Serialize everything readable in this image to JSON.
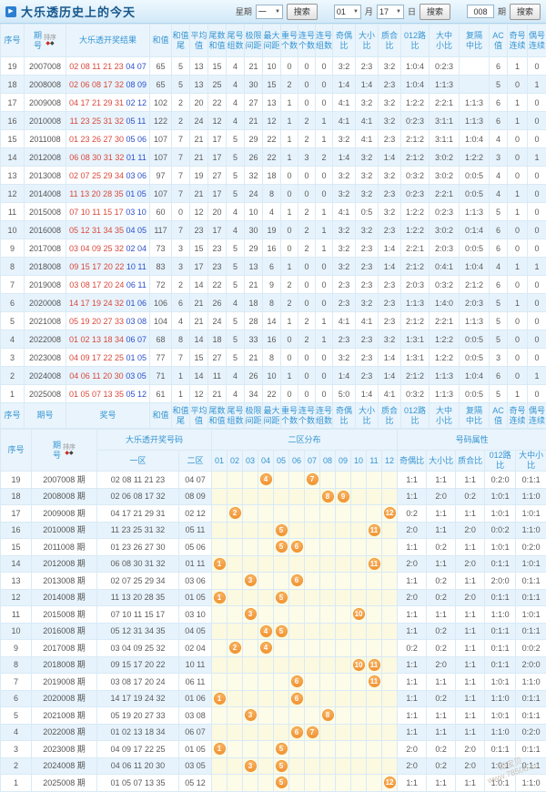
{
  "title_bar": {
    "title": "大乐透历史上的今天",
    "week_label": "星期",
    "week_value": "一",
    "search_label": "搜索",
    "month_value": "01",
    "month_label": "月",
    "day_value": "17",
    "day_label": "日",
    "issue_value": "008",
    "issue_label": "期"
  },
  "colors": {
    "accent_blue": "#3695d2",
    "front_number_red": "#d9483b",
    "back_number_blue": "#2b50cc",
    "stripe_blue": "#e7f3fc",
    "dist_yellow": "#fdfce9",
    "ball_orange": "#f29334"
  },
  "table1": {
    "sort_label": "排序",
    "columns": [
      {
        "lines": [
          "序号"
        ]
      },
      {
        "lines": [
          "期",
          "号"
        ],
        "sort": true
      },
      {
        "lines": [
          "大乐透开奖结果"
        ]
      },
      {
        "lines": [
          "和值"
        ]
      },
      {
        "lines": [
          "和值",
          "尾"
        ]
      },
      {
        "lines": [
          "平均",
          "值"
        ]
      },
      {
        "lines": [
          "尾数",
          "和值"
        ]
      },
      {
        "lines": [
          "尾号",
          "组数"
        ]
      },
      {
        "lines": [
          "极限",
          "间距"
        ]
      },
      {
        "lines": [
          "最大",
          "间距"
        ]
      },
      {
        "lines": [
          "重号",
          "个数"
        ]
      },
      {
        "lines": [
          "连号",
          "个数"
        ]
      },
      {
        "lines": [
          "连号",
          "组数"
        ]
      },
      {
        "lines": [
          "奇偶",
          "比"
        ]
      },
      {
        "lines": [
          "大小",
          "比"
        ]
      },
      {
        "lines": [
          "质合",
          "比"
        ]
      },
      {
        "lines": [
          "012路",
          "比"
        ]
      },
      {
        "lines": [
          "大中",
          "小比"
        ]
      },
      {
        "lines": [
          "复隔",
          "中比"
        ]
      },
      {
        "lines": [
          "AC值"
        ]
      },
      {
        "lines": [
          "奇号",
          "连续"
        ]
      },
      {
        "lines": [
          "偶号",
          "连续"
        ]
      }
    ],
    "footer_overrides": {
      "1": {
        "lines": [
          "期号"
        ]
      },
      "2": {
        "lines": [
          "奖号"
        ]
      }
    },
    "rows": [
      [
        19,
        "2007008",
        "02 08 11 21 23",
        "04 07",
        "65",
        "5",
        "13",
        "15",
        "4",
        "21",
        "10",
        "0",
        "0",
        "0",
        "3:2",
        "2:3",
        "3:2",
        "1:0:4",
        "0:2:3",
        "",
        "6",
        "1",
        "0"
      ],
      [
        18,
        "2008008",
        "02 06 08 17 32",
        "08 09",
        "65",
        "5",
        "13",
        "25",
        "4",
        "30",
        "15",
        "2",
        "0",
        "0",
        "1:4",
        "1:4",
        "2:3",
        "1:0:4",
        "1:1:3",
        "",
        "5",
        "0",
        "1"
      ],
      [
        17,
        "2009008",
        "04 17 21 29 31",
        "02 12",
        "102",
        "2",
        "20",
        "22",
        "4",
        "27",
        "13",
        "1",
        "0",
        "0",
        "4:1",
        "3:2",
        "3:2",
        "1:2:2",
        "2:2:1",
        "1:1:3",
        "6",
        "1",
        "0"
      ],
      [
        16,
        "2010008",
        "11 23 25 31 32",
        "05 11",
        "122",
        "2",
        "24",
        "12",
        "4",
        "21",
        "12",
        "1",
        "2",
        "1",
        "4:1",
        "4:1",
        "3:2",
        "0:2:3",
        "3:1:1",
        "1:1:3",
        "6",
        "1",
        "0"
      ],
      [
        15,
        "2011008",
        "01 23 26 27 30",
        "05 06",
        "107",
        "7",
        "21",
        "17",
        "5",
        "29",
        "22",
        "1",
        "2",
        "1",
        "3:2",
        "4:1",
        "2:3",
        "2:1:2",
        "3:1:1",
        "1:0:4",
        "4",
        "0",
        "0"
      ],
      [
        14,
        "2012008",
        "06 08 30 31 32",
        "01 11",
        "107",
        "7",
        "21",
        "17",
        "5",
        "26",
        "22",
        "1",
        "3",
        "2",
        "1:4",
        "3:2",
        "1:4",
        "2:1:2",
        "3:0:2",
        "1:2:2",
        "3",
        "0",
        "1"
      ],
      [
        13,
        "2013008",
        "02 07 25 29 34",
        "03 06",
        "97",
        "7",
        "19",
        "27",
        "5",
        "32",
        "18",
        "0",
        "0",
        "0",
        "3:2",
        "3:2",
        "3:2",
        "0:3:2",
        "3:0:2",
        "0:0:5",
        "4",
        "0",
        "0"
      ],
      [
        12,
        "2014008",
        "11 13 20 28 35",
        "01 05",
        "107",
        "7",
        "21",
        "17",
        "5",
        "24",
        "8",
        "0",
        "0",
        "0",
        "3:2",
        "3:2",
        "2:3",
        "0:2:3",
        "2:2:1",
        "0:0:5",
        "4",
        "1",
        "0"
      ],
      [
        11,
        "2015008",
        "07 10 11 15 17",
        "03 10",
        "60",
        "0",
        "12",
        "20",
        "4",
        "10",
        "4",
        "1",
        "2",
        "1",
        "4:1",
        "0:5",
        "3:2",
        "1:2:2",
        "0:2:3",
        "1:1:3",
        "5",
        "1",
        "0"
      ],
      [
        10,
        "2016008",
        "05 12 31 34 35",
        "04 05",
        "117",
        "7",
        "23",
        "17",
        "4",
        "30",
        "19",
        "0",
        "2",
        "1",
        "3:2",
        "3:2",
        "2:3",
        "1:2:2",
        "3:0:2",
        "0:1:4",
        "6",
        "0",
        "0"
      ],
      [
        9,
        "2017008",
        "03 04 09 25 32",
        "02 04",
        "73",
        "3",
        "15",
        "23",
        "5",
        "29",
        "16",
        "0",
        "2",
        "1",
        "3:2",
        "2:3",
        "1:4",
        "2:2:1",
        "2:0:3",
        "0:0:5",
        "6",
        "0",
        "0"
      ],
      [
        8,
        "2018008",
        "09 15 17 20 22",
        "10 11",
        "83",
        "3",
        "17",
        "23",
        "5",
        "13",
        "6",
        "1",
        "0",
        "0",
        "3:2",
        "2:3",
        "1:4",
        "2:1:2",
        "0:4:1",
        "1:0:4",
        "4",
        "1",
        "1"
      ],
      [
        7,
        "2019008",
        "03 08 17 20 24",
        "06 11",
        "72",
        "2",
        "14",
        "22",
        "5",
        "21",
        "9",
        "2",
        "0",
        "0",
        "2:3",
        "2:3",
        "2:3",
        "2:0:3",
        "0:3:2",
        "2:1:2",
        "6",
        "0",
        "0"
      ],
      [
        6,
        "2020008",
        "14 17 19 24 32",
        "01 06",
        "106",
        "6",
        "21",
        "26",
        "4",
        "18",
        "8",
        "2",
        "0",
        "0",
        "2:3",
        "3:2",
        "2:3",
        "1:1:3",
        "1:4:0",
        "2:0:3",
        "5",
        "1",
        "0"
      ],
      [
        5,
        "2021008",
        "05 19 20 27 33",
        "03 08",
        "104",
        "4",
        "21",
        "24",
        "5",
        "28",
        "14",
        "1",
        "2",
        "1",
        "4:1",
        "4:1",
        "2:3",
        "2:1:2",
        "2:2:1",
        "1:1:3",
        "5",
        "0",
        "0"
      ],
      [
        4,
        "2022008",
        "01 02 13 18 34",
        "06 07",
        "68",
        "8",
        "14",
        "18",
        "5",
        "33",
        "16",
        "0",
        "2",
        "1",
        "2:3",
        "2:3",
        "3:2",
        "1:3:1",
        "1:2:2",
        "0:0:5",
        "5",
        "0",
        "0"
      ],
      [
        3,
        "2023008",
        "04 09 17 22 25",
        "01 05",
        "77",
        "7",
        "15",
        "27",
        "5",
        "21",
        "8",
        "0",
        "0",
        "0",
        "3:2",
        "2:3",
        "1:4",
        "1:3:1",
        "1:2:2",
        "0:0:5",
        "3",
        "0",
        "0"
      ],
      [
        2,
        "2024008",
        "04 06 11 20 30",
        "03 05",
        "71",
        "1",
        "14",
        "11",
        "4",
        "26",
        "10",
        "1",
        "0",
        "0",
        "1:4",
        "2:3",
        "1:4",
        "2:1:2",
        "1:1:3",
        "1:0:4",
        "6",
        "0",
        "1"
      ],
      [
        1,
        "2025008",
        "01 05 07 13 35",
        "05 12",
        "61",
        "1",
        "12",
        "21",
        "4",
        "34",
        "22",
        "0",
        "0",
        "0",
        "5:0",
        "1:4",
        "4:1",
        "0:3:2",
        "1:1:3",
        "0:0:5",
        "5",
        "1",
        "0"
      ]
    ]
  },
  "table2": {
    "headers": {
      "seq": "序号",
      "issue_l1": "期",
      "issue_l2": "号",
      "sort_label": "排序",
      "numbers_group": "大乐透开奖号码",
      "zone1": "一区",
      "zone2": "二区",
      "dist_group": "二区分布",
      "attr_group": "号码属性",
      "ball_cols": [
        "01",
        "02",
        "03",
        "04",
        "05",
        "06",
        "07",
        "08",
        "09",
        "10",
        "11",
        "12"
      ],
      "attrs": [
        "奇偶比",
        "大小比",
        "质合比",
        "012路比",
        "大中小比"
      ]
    },
    "issue_suffix": "期",
    "rows": [
      [
        19,
        "2007008",
        "02 08 11 21 23",
        "04 07",
        [
          4,
          7
        ],
        "1:1",
        "1:1",
        "1:1",
        "0:2:0",
        "0:1:1"
      ],
      [
        18,
        "2008008",
        "02 06 08 17 32",
        "08 09",
        [
          8,
          9
        ],
        "1:1",
        "2:0",
        "0:2",
        "1:0:1",
        "1:1:0"
      ],
      [
        17,
        "2009008",
        "04 17 21 29 31",
        "02 12",
        [
          2,
          12
        ],
        "0:2",
        "1:1",
        "1:1",
        "1:0:1",
        "1:0:1"
      ],
      [
        16,
        "2010008",
        "11 23 25 31 32",
        "05 11",
        [
          5,
          11
        ],
        "2:0",
        "1:1",
        "2:0",
        "0:0:2",
        "1:1:0"
      ],
      [
        15,
        "2011008",
        "01 23 26 27 30",
        "05 06",
        [
          5,
          6
        ],
        "1:1",
        "0:2",
        "1:1",
        "1:0:1",
        "0:2:0"
      ],
      [
        14,
        "2012008",
        "06 08 30 31 32",
        "01 11",
        [
          1,
          11
        ],
        "2:0",
        "1:1",
        "2:0",
        "0:1:1",
        "1:0:1"
      ],
      [
        13,
        "2013008",
        "02 07 25 29 34",
        "03 06",
        [
          3,
          6
        ],
        "1:1",
        "0:2",
        "1:1",
        "2:0:0",
        "0:1:1"
      ],
      [
        12,
        "2014008",
        "11 13 20 28 35",
        "01 05",
        [
          1,
          5
        ],
        "2:0",
        "0:2",
        "2:0",
        "0:1:1",
        "0:1:1"
      ],
      [
        11,
        "2015008",
        "07 10 11 15 17",
        "03 10",
        [
          3,
          10
        ],
        "1:1",
        "1:1",
        "1:1",
        "1:1:0",
        "1:0:1"
      ],
      [
        10,
        "2016008",
        "05 12 31 34 35",
        "04 05",
        [
          4,
          5
        ],
        "1:1",
        "0:2",
        "1:1",
        "0:1:1",
        "0:1:1"
      ],
      [
        9,
        "2017008",
        "03 04 09 25 32",
        "02 04",
        [
          2,
          4
        ],
        "0:2",
        "0:2",
        "1:1",
        "0:1:1",
        "0:0:2"
      ],
      [
        8,
        "2018008",
        "09 15 17 20 22",
        "10 11",
        [
          10,
          11
        ],
        "1:1",
        "2:0",
        "1:1",
        "0:1:1",
        "2:0:0"
      ],
      [
        7,
        "2019008",
        "03 08 17 20 24",
        "06 11",
        [
          6,
          11
        ],
        "1:1",
        "1:1",
        "1:1",
        "1:0:1",
        "1:1:0"
      ],
      [
        6,
        "2020008",
        "14 17 19 24 32",
        "01 06",
        [
          1,
          6
        ],
        "1:1",
        "0:2",
        "1:1",
        "1:1:0",
        "0:1:1"
      ],
      [
        5,
        "2021008",
        "05 19 20 27 33",
        "03 08",
        [
          3,
          8
        ],
        "1:1",
        "1:1",
        "1:1",
        "1:0:1",
        "0:1:1"
      ],
      [
        4,
        "2022008",
        "01 02 13 18 34",
        "06 07",
        [
          6,
          7
        ],
        "1:1",
        "1:1",
        "1:1",
        "1:1:0",
        "0:2:0"
      ],
      [
        3,
        "2023008",
        "04 09 17 22 25",
        "01 05",
        [
          1,
          5
        ],
        "2:0",
        "0:2",
        "2:0",
        "0:1:1",
        "0:1:1"
      ],
      [
        2,
        "2024008",
        "04 06 11 20 30",
        "03 05",
        [
          3,
          5
        ],
        "2:0",
        "0:2",
        "2:0",
        "1:0:1",
        "0:1:1"
      ],
      [
        1,
        "2025008",
        "01 05 07 13 35",
        "05 12",
        [
          5,
          12
        ],
        "1:1",
        "1:1",
        "1:1",
        "1:0:1",
        "1:1:0"
      ]
    ]
  },
  "watermark": {
    "line1": "彩宝贝",
    "line2": "www.78500.cn"
  }
}
